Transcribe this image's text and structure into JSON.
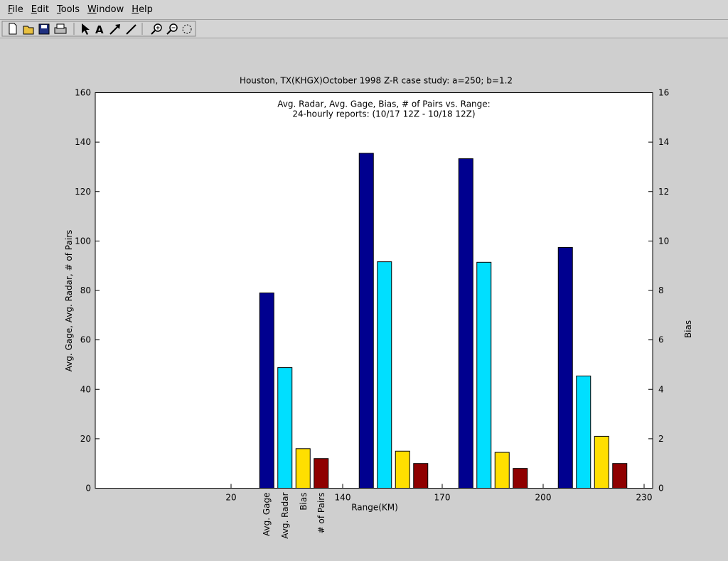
{
  "menu": [
    "File",
    "Edit",
    "Tools",
    "Window",
    "Help"
  ],
  "chart_data": {
    "type": "bar",
    "title": "Houston, TX(KHGX)October 1998 Z-R case study: a=250; b=1.2",
    "annotation": [
      "Avg. Radar, Avg. Gage, Bias, # of Pairs vs. Range:",
      "24-hourly reports: (10/17 12Z - 10/18 12Z)"
    ],
    "xlabel": "Range(KM)",
    "ylabel": "Avg. Gage, Avg. Radar, # of Pairs",
    "y2label": "Bias",
    "xtick_labels": [
      "20",
      "Avg. Gage",
      "Avg. Radar",
      "Bias",
      "# of Pairs",
      "140",
      "170",
      "200",
      "230"
    ],
    "categories": [
      null,
      null,
      null,
      null
    ],
    "ylim": [
      0,
      160
    ],
    "yticks": [
      0,
      20,
      40,
      60,
      80,
      100,
      120,
      140,
      160
    ],
    "y2lim": [
      0,
      16
    ],
    "y2ticks": [
      0,
      2,
      4,
      6,
      8,
      10,
      12,
      14,
      16
    ],
    "series": [
      {
        "name": "Avg. Gage",
        "color": "#00008f",
        "values": [
          79,
          135.5,
          133.3,
          97.4
        ]
      },
      {
        "name": "Avg. Radar",
        "color": "#00dfff",
        "values": [
          48.8,
          91.6,
          91.4,
          45.4
        ]
      },
      {
        "name": "Bias",
        "color": "#ffdf00",
        "axis": "y2",
        "values": [
          1.6,
          1.5,
          1.45,
          2.1
        ]
      },
      {
        "name": "# of Pairs",
        "color": "#8f0000",
        "values": [
          12,
          10,
          8,
          10
        ]
      }
    ]
  }
}
